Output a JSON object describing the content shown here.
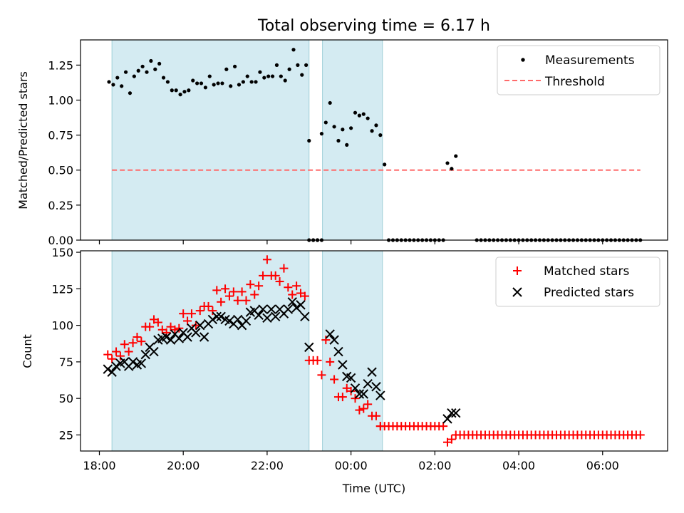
{
  "title": "Total observing time = 6.17 h",
  "colors": {
    "shade": "#add8e6",
    "measurements": "#000000",
    "threshold": "#ff6b6b",
    "matched": "#ff0000",
    "predicted": "#000000"
  },
  "chart_data": [
    {
      "type": "scatter",
      "ylabel": "Matched/Predicted stars",
      "ylim": [
        0,
        1.43
      ],
      "yticks": [
        0.0,
        0.25,
        0.5,
        0.75,
        1.0,
        1.25
      ],
      "ytick_labels": [
        "0.00",
        "0.25",
        "0.50",
        "0.75",
        "1.00",
        "1.25"
      ],
      "legend": {
        "placement": "top-right",
        "measurements_label": "Measurements",
        "threshold_label": "Threshold"
      },
      "observing_windows": [
        [
          18.3,
          23.0
        ],
        [
          23.32,
          24.75
        ]
      ],
      "threshold": {
        "value": 0.5,
        "x_range": [
          18.3,
          30.9
        ]
      },
      "measurements": {
        "x": [
          18.23,
          18.33,
          18.43,
          18.53,
          18.63,
          18.73,
          18.83,
          18.93,
          19.03,
          19.13,
          19.23,
          19.33,
          19.43,
          19.53,
          19.63,
          19.73,
          19.83,
          19.93,
          20.03,
          20.13,
          20.23,
          20.33,
          20.43,
          20.53,
          20.63,
          20.73,
          20.83,
          20.93,
          21.03,
          21.13,
          21.23,
          21.33,
          21.43,
          21.53,
          21.63,
          21.73,
          21.83,
          21.93,
          22.03,
          22.13,
          22.23,
          22.33,
          22.43,
          22.53,
          22.63,
          22.73,
          22.83,
          22.93,
          23.0,
          23.1,
          23.2,
          23.3,
          23.4,
          23.5,
          23.6,
          23.7,
          23.8,
          23.9,
          24.0,
          24.1,
          24.2,
          24.3,
          24.4,
          24.5,
          24.6,
          24.7,
          24.8,
          26.3,
          26.4,
          26.5
        ],
        "y": [
          1.13,
          1.11,
          1.16,
          1.1,
          1.2,
          1.05,
          1.17,
          1.21,
          1.24,
          1.2,
          1.28,
          1.22,
          1.26,
          1.16,
          1.13,
          1.07,
          1.07,
          1.04,
          1.06,
          1.07,
          1.14,
          1.12,
          1.12,
          1.09,
          1.17,
          1.11,
          1.12,
          1.12,
          1.22,
          1.1,
          1.24,
          1.11,
          1.13,
          1.17,
          1.13,
          1.13,
          1.2,
          1.16,
          1.17,
          1.17,
          1.25,
          1.17,
          1.14,
          1.22,
          1.36,
          1.25,
          1.18,
          1.25,
          0.71,
          0.0,
          0.0,
          0.76,
          0.84,
          0.98,
          0.81,
          0.71,
          0.79,
          0.68,
          0.8,
          0.91,
          0.89,
          0.9,
          0.87,
          0.78,
          0.82,
          0.75,
          0.54,
          0.55,
          0.51,
          0.6
        ]
      },
      "zeros": {
        "x_ranges": [
          [
            23.0,
            23.3
          ],
          [
            24.9,
            26.25
          ],
          [
            27.0,
            30.9
          ]
        ],
        "step": 0.1,
        "y": 0
      }
    },
    {
      "type": "scatter",
      "xlabel": "Time (UTC)",
      "ylabel": "Count",
      "xlim": [
        17.55,
        31.55
      ],
      "ylim": [
        14,
        151
      ],
      "yticks": [
        25,
        50,
        75,
        100,
        125,
        150
      ],
      "ytick_labels": [
        "25",
        "50",
        "75",
        "100",
        "125",
        "150"
      ],
      "xticks": [
        18,
        20,
        22,
        24,
        26,
        28,
        30
      ],
      "xtick_labels": [
        "18:00",
        "20:00",
        "22:00",
        "00:00",
        "02:00",
        "04:00",
        "06:00"
      ],
      "legend": {
        "placement": "top-right",
        "matched_label": "Matched stars",
        "predicted_label": "Predicted stars"
      },
      "observing_windows": [
        [
          18.3,
          23.0
        ],
        [
          23.32,
          24.75
        ]
      ],
      "matched": {
        "x": [
          18.2,
          18.3,
          18.4,
          18.5,
          18.6,
          18.7,
          18.8,
          18.9,
          19.0,
          19.1,
          19.2,
          19.3,
          19.4,
          19.5,
          19.6,
          19.7,
          19.8,
          19.9,
          20.0,
          20.1,
          20.2,
          20.3,
          20.4,
          20.5,
          20.6,
          20.7,
          20.8,
          20.9,
          21.0,
          21.1,
          21.2,
          21.3,
          21.4,
          21.5,
          21.6,
          21.7,
          21.8,
          21.9,
          22.0,
          22.1,
          22.2,
          22.3,
          22.4,
          22.5,
          22.6,
          22.7,
          22.8,
          22.9,
          23.0,
          23.1,
          23.2,
          23.3,
          23.4,
          23.5,
          23.6,
          23.7,
          23.8,
          23.9,
          24.0,
          24.1,
          24.2,
          24.3,
          24.4,
          24.5,
          24.6,
          24.7,
          26.3,
          26.4,
          26.5
        ],
        "y": [
          80,
          77,
          82,
          79,
          87,
          82,
          88,
          92,
          89,
          99,
          99,
          104,
          102,
          97,
          95,
          99,
          97,
          98,
          108,
          103,
          108,
          100,
          110,
          113,
          113,
          110,
          124,
          116,
          125,
          120,
          123,
          117,
          123,
          117,
          128,
          121,
          127,
          134,
          145,
          134,
          134,
          130,
          139,
          126,
          121,
          127,
          122,
          120,
          76,
          76,
          76,
          66,
          90,
          75,
          63,
          51,
          51,
          57,
          55,
          50,
          42,
          43,
          46,
          38,
          38,
          31,
          20,
          22,
          25
        ]
      },
      "matched_flat": [
        {
          "x_range": [
            24.7,
            26.2
          ],
          "step": 0.1,
          "y": 31
        },
        {
          "x_range": [
            26.6,
            30.9
          ],
          "step": 0.1,
          "y": 25
        }
      ],
      "predicted": {
        "x": [
          18.2,
          18.3,
          18.4,
          18.5,
          18.6,
          18.7,
          18.8,
          18.9,
          19.0,
          19.1,
          19.2,
          19.3,
          19.4,
          19.5,
          19.6,
          19.7,
          19.8,
          19.9,
          20.0,
          20.1,
          20.2,
          20.3,
          20.4,
          20.5,
          20.6,
          20.7,
          20.8,
          20.9,
          21.0,
          21.1,
          21.2,
          21.3,
          21.4,
          21.5,
          21.6,
          21.7,
          21.8,
          21.9,
          22.0,
          22.1,
          22.2,
          22.3,
          22.4,
          22.5,
          22.6,
          22.7,
          22.8,
          22.9,
          23.0,
          23.5,
          23.6,
          23.7,
          23.8,
          23.9,
          24.0,
          24.1,
          24.2,
          24.3,
          24.4,
          24.5,
          24.6,
          24.7,
          26.3,
          26.4,
          26.5
        ],
        "y": [
          70,
          68,
          72,
          74,
          75,
          72,
          75,
          73,
          74,
          80,
          85,
          82,
          90,
          91,
          92,
          90,
          94,
          91,
          95,
          92,
          98,
          95,
          100,
          92,
          101,
          104,
          106,
          106,
          104,
          103,
          101,
          104,
          100,
          103,
          109,
          110,
          107,
          111,
          105,
          111,
          106,
          111,
          108,
          111,
          116,
          112,
          114,
          106,
          85,
          94,
          90,
          82,
          73,
          65,
          64,
          57,
          53,
          53,
          60,
          68,
          58,
          52,
          36,
          40,
          40
        ]
      }
    }
  ]
}
